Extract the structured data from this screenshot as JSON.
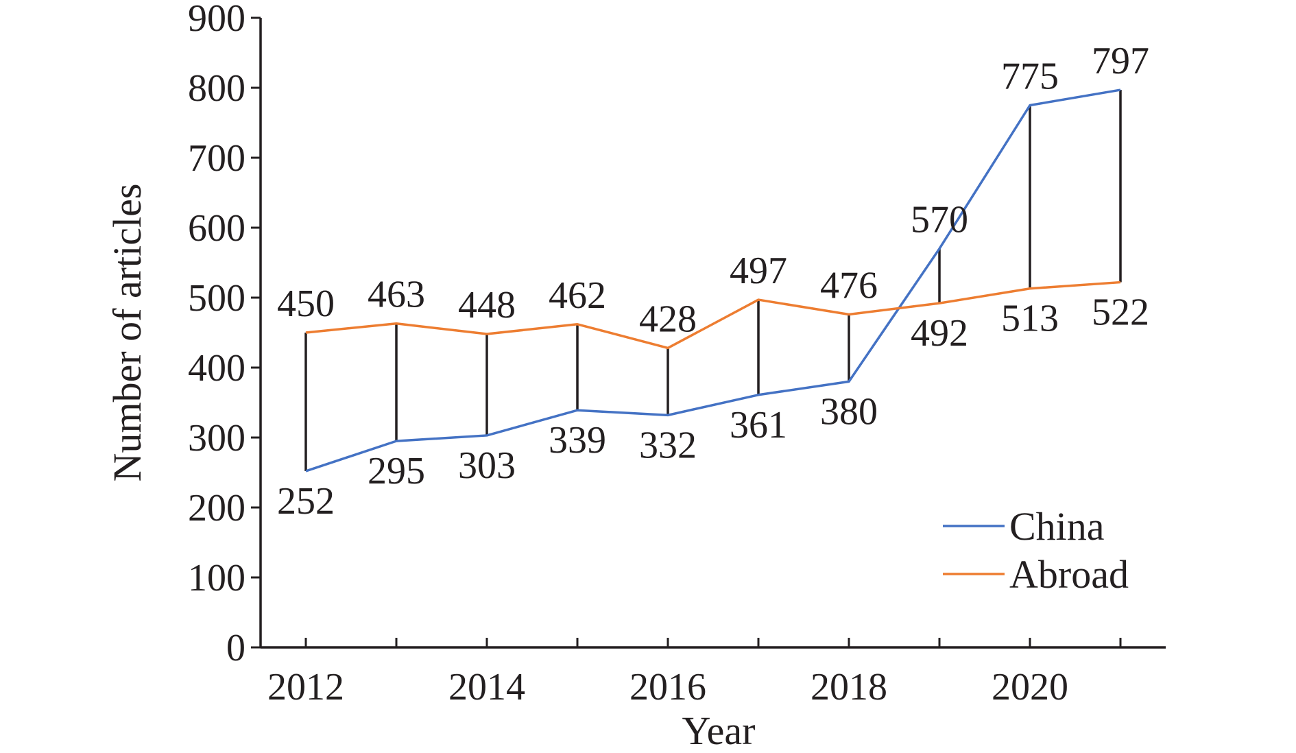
{
  "chart_data": {
    "type": "line",
    "title": "",
    "xlabel": "Year",
    "ylabel": "Number of articles",
    "x": [
      2012,
      2013,
      2014,
      2015,
      2016,
      2017,
      2018,
      2019,
      2020,
      2021
    ],
    "x_tick_labels": [
      "2012",
      "2014",
      "2016",
      "2018",
      "2020"
    ],
    "x_tick_label_values": [
      2012,
      2014,
      2016,
      2018,
      2020
    ],
    "y_ticks": [
      0,
      100,
      200,
      300,
      400,
      500,
      600,
      700,
      800,
      900
    ],
    "ylim": [
      0,
      900
    ],
    "grid": false,
    "legend_position": "bottom-right",
    "drop_lines": true,
    "series": [
      {
        "name": "China",
        "color": "#4472c4",
        "values": [
          252,
          295,
          303,
          339,
          332,
          361,
          380,
          570,
          775,
          797
        ],
        "data_labels": [
          "252",
          "295",
          "303",
          "339",
          "332",
          "361",
          "380",
          "570",
          "775",
          "797"
        ]
      },
      {
        "name": "Abroad",
        "color": "#ed7d31",
        "values": [
          450,
          463,
          448,
          462,
          428,
          497,
          476,
          492,
          513,
          522
        ],
        "data_labels": [
          "450",
          "463",
          "448",
          "462",
          "428",
          "497",
          "476",
          "492",
          "513",
          "522"
        ]
      }
    ],
    "axis_color": "#231f20",
    "drop_line_color": "#231f20"
  }
}
